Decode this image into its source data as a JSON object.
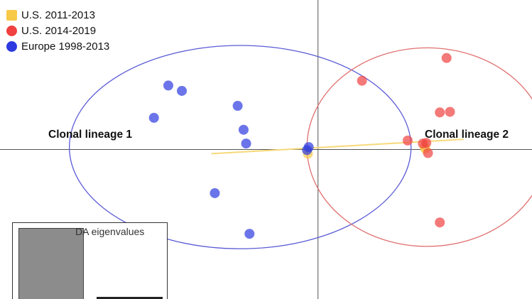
{
  "chart_data": {
    "type": "scatter",
    "title": "",
    "xlabel": "",
    "ylabel": "",
    "series": [
      {
        "name": "U.S. 2011-2013",
        "color": "#f7c948",
        "points": [
          [
            -0.6,
            -0.35
          ],
          [
            6.3,
            0.2
          ],
          [
            6.35,
            0.05
          ]
        ]
      },
      {
        "name": "U.S. 2014-2019",
        "color": "#f04040",
        "points": [
          [
            6.4,
            0.55
          ],
          [
            6.2,
            0.5
          ],
          [
            6.5,
            -0.3
          ],
          [
            5.3,
            0.75
          ],
          [
            7.2,
            3.1
          ],
          [
            7.8,
            3.15
          ],
          [
            7.6,
            7.65
          ],
          [
            7.2,
            -6.1
          ],
          [
            2.6,
            5.75
          ]
        ]
      },
      {
        "name": "Europe 1998-2013",
        "color": "#2c3ae0",
        "points": [
          [
            -8.85,
            5.35
          ],
          [
            -8.05,
            4.9
          ],
          [
            -9.7,
            2.65
          ],
          [
            -4.4,
            1.65
          ],
          [
            -4.75,
            3.65
          ],
          [
            -4.25,
            0.5
          ],
          [
            -0.55,
            0.2
          ],
          [
            -0.65,
            -0.05
          ],
          [
            -6.1,
            -3.65
          ],
          [
            -4.05,
            -7.05
          ]
        ]
      }
    ],
    "markers": [
      {
        "name": "U.S. 2011-2013",
        "shape": "square"
      },
      {
        "name": "U.S. 2014-2019",
        "shape": "circle"
      },
      {
        "name": "Europe 1998-2013",
        "shape": "circle"
      }
    ],
    "ellipses": [
      {
        "label": "Clonal lineage 1",
        "cx": -4.6,
        "cy": 0.2,
        "rx": 10.1,
        "ry": 8.5,
        "color": "#5a5ad6"
      },
      {
        "label": "Clonal lineage 2",
        "cx": 6.45,
        "cy": 0.2,
        "rx": 7.1,
        "ry": 8.3,
        "color": "#e07070"
      }
    ],
    "segment": {
      "color": "#f7d97a",
      "from": [
        -6.3,
        -0.35
      ],
      "to": [
        8.6,
        0.85
      ]
    },
    "axes": {
      "show_zero_lines": true
    },
    "xlim": [
      -18.8,
      12.65
    ],
    "ylim": [
      -12.5,
      12.5
    ],
    "grid": false,
    "legend_position": "top-left",
    "inset": {
      "title": "DA eigenvalues",
      "values": [
        1.0,
        0.03
      ]
    }
  },
  "legend": {
    "items": [
      {
        "label": "U.S. 2011-2013"
      },
      {
        "label": "U.S. 2014-2019"
      },
      {
        "label": "Europe 1998-2013"
      }
    ]
  },
  "labels": {
    "lineage1": "Clonal lineage 1",
    "lineage2": "Clonal lineage 2"
  }
}
